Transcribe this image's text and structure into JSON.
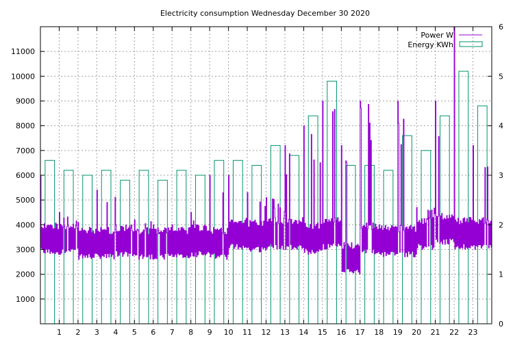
{
  "chart_data": {
    "type": "bar+line",
    "title": "Electricity consumption Wednesday December 30 2020",
    "x_ticks": [
      "1",
      "2",
      "3",
      "4",
      "5",
      "6",
      "7",
      "8",
      "9",
      "10",
      "11",
      "12",
      "13",
      "14",
      "15",
      "16",
      "17",
      "18",
      "19",
      "20",
      "21",
      "22",
      "23"
    ],
    "xlim": [
      0,
      24
    ],
    "ylim_left": [
      0,
      12000
    ],
    "y_ticks_left": [
      "1000",
      "2000",
      "3000",
      "4000",
      "5000",
      "6000",
      "7000",
      "8000",
      "9000",
      "10000",
      "11000"
    ],
    "ylim_right": [
      0,
      6
    ],
    "y_ticks_right": [
      "0",
      "1",
      "2",
      "3",
      "4",
      "5",
      "6"
    ],
    "grid": true,
    "legend_position": "top-right",
    "series": [
      {
        "name": "Power W",
        "kind": "line",
        "color": "#9400d3",
        "hourly_band": [
          [
            2800,
            6000
          ],
          [
            2800,
            4500
          ],
          [
            2600,
            4100
          ],
          [
            2600,
            5400
          ],
          [
            2700,
            4000
          ],
          [
            2600,
            4200
          ],
          [
            2600,
            4000
          ],
          [
            2600,
            4000
          ],
          [
            2700,
            4500
          ],
          [
            2600,
            6000
          ],
          [
            3000,
            6000
          ],
          [
            2900,
            5300
          ],
          [
            3000,
            5100
          ],
          [
            3000,
            7200
          ],
          [
            2800,
            8000
          ],
          [
            3000,
            9000
          ],
          [
            2000,
            7200
          ],
          [
            2800,
            9000
          ],
          [
            2700,
            4000
          ],
          [
            2700,
            9000
          ],
          [
            3000,
            4700
          ],
          [
            3200,
            9000
          ],
          [
            3000,
            12000
          ],
          [
            3000,
            7200
          ]
        ]
      },
      {
        "name": "Energy KWh",
        "kind": "bar",
        "color": "#00936e",
        "values": [
          3.3,
          3.1,
          3.0,
          3.1,
          2.9,
          3.1,
          2.9,
          3.1,
          3.0,
          3.3,
          3.3,
          3.2,
          3.6,
          3.4,
          4.2,
          4.9,
          3.2,
          3.2,
          3.1,
          3.8,
          3.5,
          4.2,
          5.1,
          4.4
        ]
      }
    ]
  }
}
